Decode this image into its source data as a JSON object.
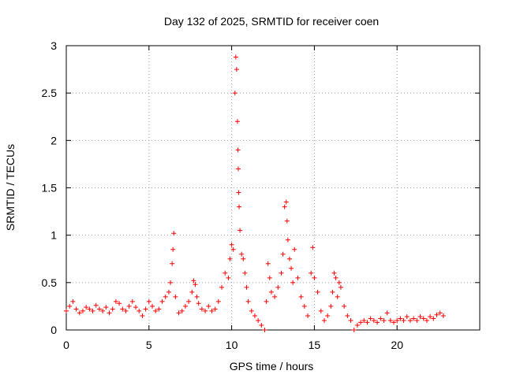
{
  "chart_data": {
    "type": "scatter",
    "title": "Day 132 of 2025, SRMTID for receiver coen",
    "xlabel": "GPS time / hours",
    "ylabel": "SRMTID / TECUs",
    "xlim": [
      0,
      25
    ],
    "ylim": [
      0,
      3
    ],
    "xticks": [
      0,
      5,
      10,
      15,
      20
    ],
    "xtick_labels": [
      "0",
      "5",
      "10",
      "15",
      "20"
    ],
    "yticks": [
      0,
      0.5,
      1,
      1.5,
      2,
      2.5,
      3
    ],
    "ytick_labels": [
      "0",
      "0.5",
      "1",
      "1.5",
      "2",
      "2.5",
      "3"
    ],
    "grid": true,
    "marker": "plus",
    "color": "#ff0000",
    "series": [
      {
        "name": "SRMTID",
        "x": [
          0.0,
          0.2,
          0.4,
          0.6,
          0.8,
          1.0,
          1.2,
          1.4,
          1.6,
          1.8,
          2.0,
          2.2,
          2.4,
          2.6,
          2.8,
          3.0,
          3.2,
          3.4,
          3.6,
          3.8,
          4.0,
          4.2,
          4.4,
          4.6,
          4.8,
          5.0,
          5.2,
          5.4,
          5.6,
          5.8,
          6.0,
          6.2,
          6.3,
          6.4,
          6.45,
          6.5,
          6.6,
          6.8,
          7.0,
          7.2,
          7.4,
          7.6,
          7.7,
          7.8,
          7.9,
          8.0,
          8.2,
          8.4,
          8.6,
          8.8,
          9.0,
          9.2,
          9.4,
          9.6,
          9.8,
          9.9,
          10.0,
          10.1,
          10.2,
          10.25,
          10.3,
          10.35,
          10.38,
          10.4,
          10.42,
          10.45,
          10.5,
          10.6,
          10.7,
          10.8,
          10.9,
          11.0,
          11.2,
          11.4,
          11.6,
          11.8,
          12.0,
          12.1,
          12.2,
          12.3,
          12.4,
          12.6,
          12.8,
          13.0,
          13.1,
          13.2,
          13.3,
          13.35,
          13.4,
          13.5,
          13.6,
          13.7,
          13.8,
          14.0,
          14.2,
          14.4,
          14.6,
          14.8,
          14.9,
          15.0,
          15.2,
          15.4,
          15.6,
          15.8,
          16.0,
          16.1,
          16.2,
          16.3,
          16.4,
          16.5,
          16.6,
          16.8,
          17.0,
          17.2,
          17.4,
          17.6,
          17.8,
          18.0,
          18.2,
          18.4,
          18.6,
          18.8,
          19.0,
          19.2,
          19.4,
          19.6,
          19.8,
          20.0,
          20.2,
          20.4,
          20.6,
          20.8,
          21.0,
          21.2,
          21.4,
          21.6,
          21.8,
          22.0,
          22.2,
          22.4,
          22.6,
          22.8
        ],
        "y": [
          0.2,
          0.25,
          0.3,
          0.22,
          0.18,
          0.2,
          0.24,
          0.22,
          0.2,
          0.26,
          0.22,
          0.2,
          0.24,
          0.18,
          0.22,
          0.3,
          0.28,
          0.22,
          0.2,
          0.25,
          0.3,
          0.24,
          0.2,
          0.15,
          0.22,
          0.3,
          0.25,
          0.2,
          0.22,
          0.3,
          0.35,
          0.4,
          0.5,
          0.7,
          0.85,
          1.02,
          0.35,
          0.18,
          0.2,
          0.25,
          0.3,
          0.4,
          0.52,
          0.48,
          0.35,
          0.28,
          0.22,
          0.2,
          0.25,
          0.2,
          0.22,
          0.3,
          0.45,
          0.6,
          0.55,
          0.75,
          0.9,
          0.85,
          2.5,
          2.88,
          2.75,
          2.2,
          1.9,
          1.7,
          1.45,
          1.3,
          1.05,
          0.8,
          0.75,
          0.6,
          0.45,
          0.3,
          0.2,
          0.15,
          0.1,
          0.05,
          0.0,
          0.3,
          0.7,
          0.55,
          0.4,
          0.35,
          0.45,
          0.6,
          0.8,
          1.3,
          1.35,
          1.15,
          0.95,
          0.75,
          0.65,
          0.5,
          0.85,
          0.55,
          0.35,
          0.25,
          0.15,
          0.6,
          0.87,
          0.55,
          0.4,
          0.2,
          0.1,
          0.15,
          0.25,
          0.4,
          0.6,
          0.55,
          0.35,
          0.5,
          0.45,
          0.25,
          0.15,
          0.1,
          0.0,
          0.05,
          0.08,
          0.1,
          0.08,
          0.12,
          0.1,
          0.08,
          0.12,
          0.1,
          0.18,
          0.1,
          0.08,
          0.1,
          0.12,
          0.1,
          0.14,
          0.1,
          0.12,
          0.1,
          0.14,
          0.12,
          0.1,
          0.14,
          0.12,
          0.16,
          0.18,
          0.15
        ]
      }
    ]
  }
}
